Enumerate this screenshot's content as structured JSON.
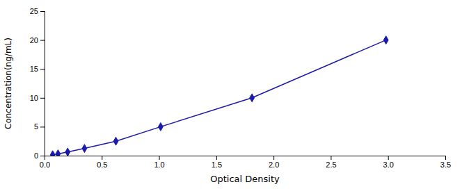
{
  "chart_data": {
    "type": "line",
    "x": [
      0.071,
      0.118,
      0.202,
      0.349,
      0.623,
      1.014,
      1.812,
      2.982
    ],
    "values": [
      0.156,
      0.312,
      0.625,
      1.25,
      2.5,
      5.0,
      10.0,
      20.0
    ],
    "color": "#1a1aaa",
    "marker": "diamond",
    "xlabel": "Optical Density",
    "ylabel": "Concentration(ng/mL)",
    "xlim": [
      0,
      3.5
    ],
    "ylim": [
      0,
      25
    ],
    "xticks": [
      {
        "value": 0,
        "label": "0.0"
      },
      0.5,
      {
        "value": 1.0,
        "label": "1.0"
      },
      1.5,
      {
        "value": 2.0,
        "label": "2.0"
      },
      2.5,
      {
        "value": 3.0,
        "label": "3.0"
      },
      3.5
    ],
    "yticks": [
      0,
      5,
      10,
      15,
      20,
      25
    ],
    "grid": false
  }
}
